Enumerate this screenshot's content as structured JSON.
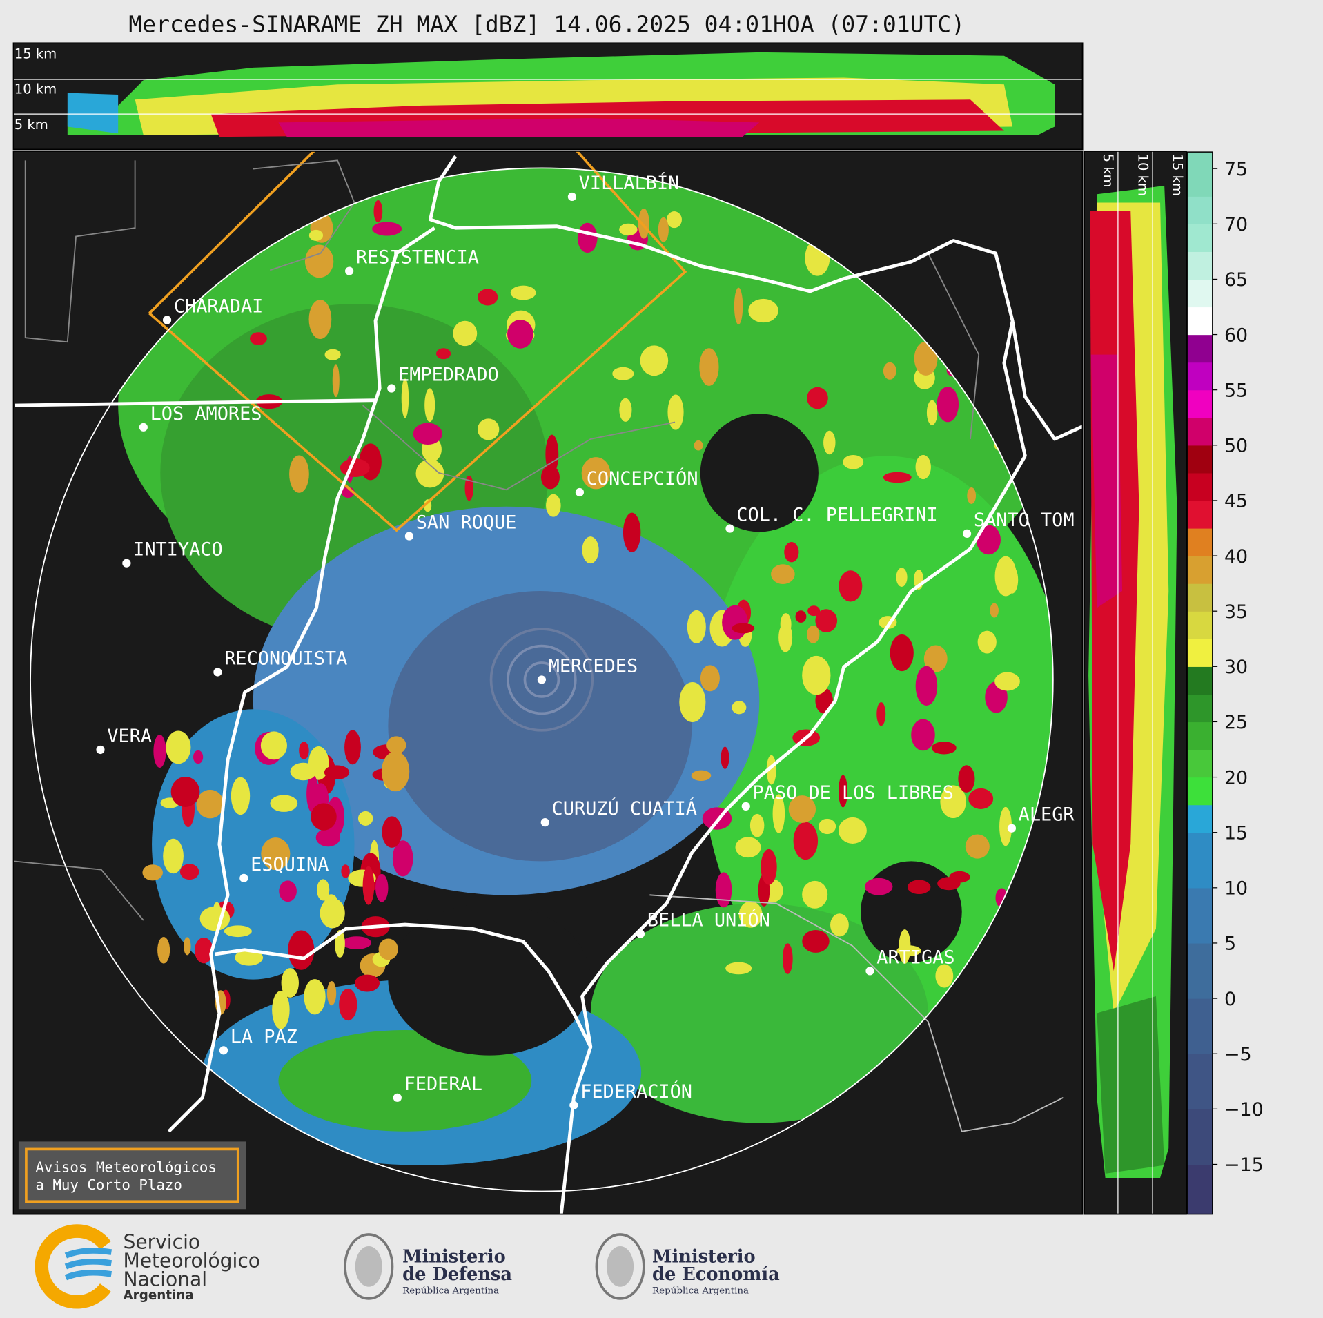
{
  "title": "Mercedes-SINARAME ZH MAX [dBZ] 14.06.2025 04:01HOA (07:01UTC)",
  "cross_section_top": {
    "height_labels": [
      "15 km",
      "10 km",
      "5 km"
    ]
  },
  "cross_section_right": {
    "height_labels": [
      "5 km",
      "10 km",
      "15 km"
    ]
  },
  "cities": [
    "VILLALBÍN",
    "RESISTENCIA",
    "CHARADAI",
    "EMPEDRADO",
    "LOS AMORES",
    "CONCEPCIÓN",
    "COL. C. PELLEGRINI",
    "SANTO TOM",
    "SAN ROQUE",
    "INTIYACO",
    "RECONQUISTA",
    "MERCEDES",
    "VERA",
    "CURUZÚ CUATIÁ",
    "PASO DE LOS LIBRES",
    "ALEGR",
    "ESQUINA",
    "BELLA UNIÓN",
    "ARTIGAS",
    "LA PAZ",
    "FEDERAL",
    "FEDERACIÓN"
  ],
  "colorbar": {
    "lim": [
      -19.5,
      76.5
    ],
    "ticks": [
      {
        "value": -15,
        "label": "−15"
      },
      {
        "value": -10,
        "label": "−10"
      },
      {
        "value": -5,
        "label": "−5"
      },
      0,
      5,
      10,
      15,
      20,
      25,
      30,
      35,
      40,
      45,
      50,
      55,
      60,
      65,
      70,
      75
    ],
    "boundaries": [
      -19.5,
      -15,
      -10,
      -5,
      0,
      5,
      10,
      15,
      17.5,
      20,
      22.5,
      25,
      27.5,
      30,
      32.5,
      35,
      37.5,
      40,
      42.5,
      45,
      47.5,
      50,
      52.5,
      55,
      57.5,
      60,
      62.5,
      65,
      67.5,
      70,
      72.5,
      76.5
    ],
    "colors": [
      "#3b3b6e",
      "#3d4a7a",
      "#3f5585",
      "#3f6090",
      "#3e6d9c",
      "#3a7ab0",
      "#2f8cc4",
      "#29a7d8",
      "#3de03a",
      "#48c83a",
      "#3ab030",
      "#2e962a",
      "#237a20",
      "#f0f040",
      "#d8d840",
      "#c8c040",
      "#d8a030",
      "#e08020",
      "#e01030",
      "#c80020",
      "#a00010",
      "#d0006a",
      "#f000c0",
      "#c000c0",
      "#900090",
      "#ffffff",
      "#e0f8f0",
      "#c0f0e0",
      "#a0e8d0",
      "#90e0c8",
      "#80d8b8"
    ]
  },
  "notice": {
    "lines": [
      "Avisos Meteorológicos",
      "a Muy Corto Plazo"
    ]
  },
  "logos": {
    "smn": [
      "Servicio",
      "Meteorológico",
      "Nacional",
      "Argentina"
    ],
    "defensa": [
      "Ministerio",
      "de Defensa",
      "República Argentina"
    ],
    "economia": [
      "Ministerio",
      "de Economía",
      "República Argentina"
    ]
  }
}
